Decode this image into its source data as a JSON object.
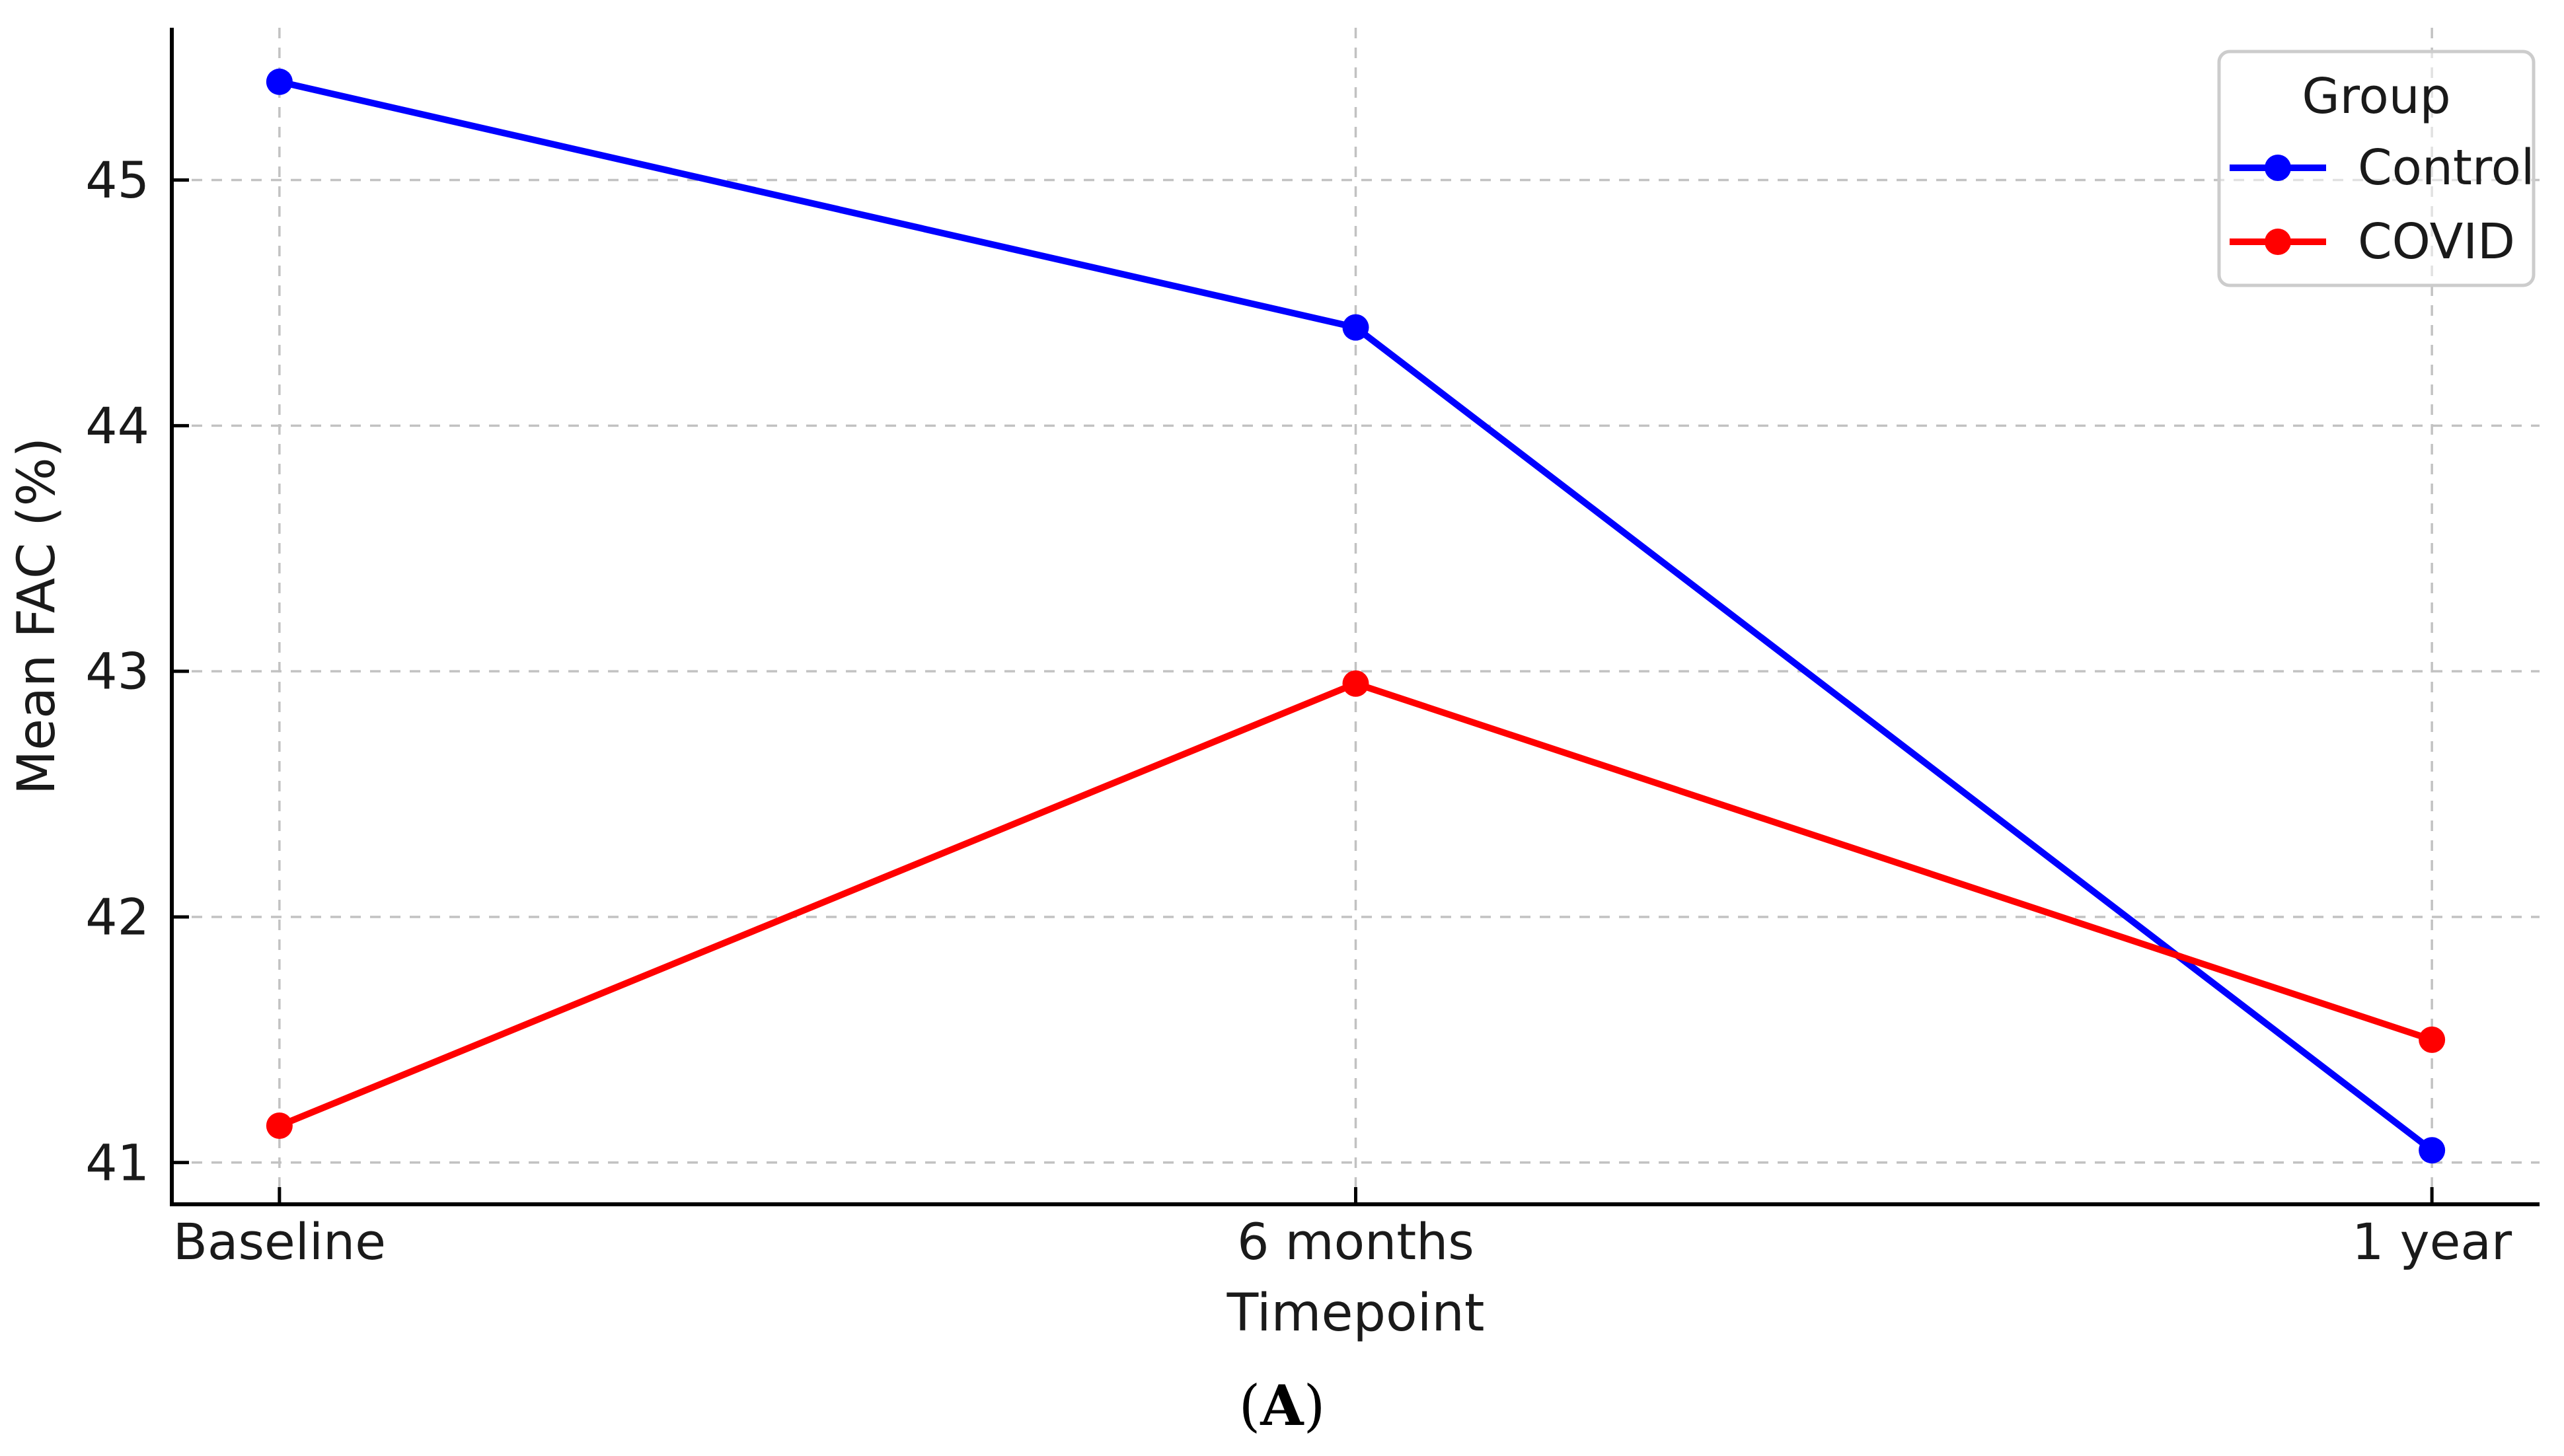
{
  "figure": {
    "caption": {
      "open": "(",
      "letter": "A",
      "close": ")"
    }
  },
  "chart_data": {
    "type": "line",
    "title": "",
    "xlabel": "Timepoint",
    "ylabel": "Mean FAC (%)",
    "categories": [
      "Baseline",
      "6 months",
      "1 year"
    ],
    "series": [
      {
        "name": "Control",
        "color": "#0000ff",
        "marker": "circle",
        "values": [
          45.4,
          44.4,
          41.05
        ]
      },
      {
        "name": "COVID",
        "color": "#ff0000",
        "marker": "circle",
        "values": [
          41.15,
          42.95,
          41.5
        ]
      }
    ],
    "yticks": [
      41,
      42,
      43,
      44,
      45
    ],
    "ylim": [
      40.83,
      45.62
    ],
    "xlim": [
      -0.1,
      2.1
    ],
    "grid": {
      "visible": true,
      "style": "dashed",
      "color": "#c2c2c2"
    },
    "legend": {
      "title": "Group",
      "position": "upper right"
    },
    "colors": {
      "axis": "#000000",
      "text": "#1a1a1a",
      "legend_border": "#cccccc"
    }
  }
}
